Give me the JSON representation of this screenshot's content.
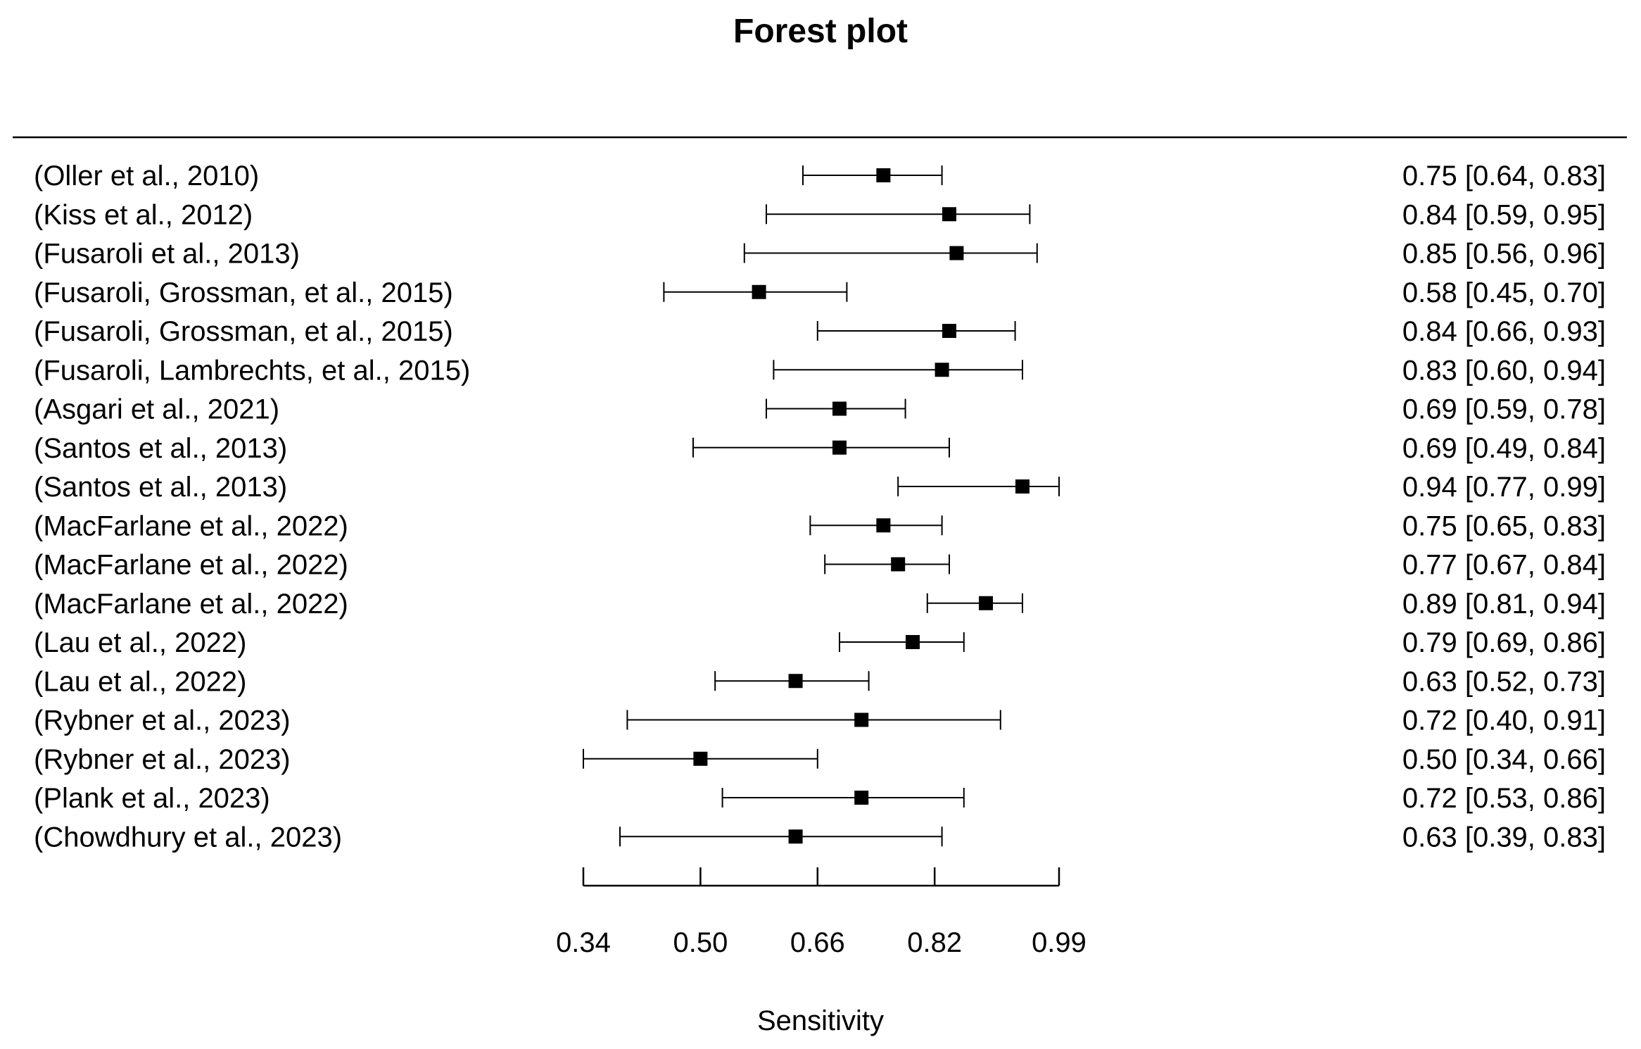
{
  "chart_data": {
    "type": "forest",
    "title": "Forest plot",
    "xlabel": "Sensitivity",
    "xlim": [
      0.34,
      0.99
    ],
    "xticks": [
      0.34,
      0.5,
      0.66,
      0.82,
      0.99
    ],
    "xtick_labels": [
      "0.34",
      "0.50",
      "0.66",
      "0.82",
      "0.99"
    ],
    "studies": [
      {
        "label": "(Oller et al., 2010)",
        "estimate": 0.75,
        "lower": 0.64,
        "upper": 0.83,
        "ci_text": "0.75 [0.64, 0.83]"
      },
      {
        "label": "(Kiss et al., 2012)",
        "estimate": 0.84,
        "lower": 0.59,
        "upper": 0.95,
        "ci_text": "0.84 [0.59, 0.95]"
      },
      {
        "label": "(Fusaroli et al., 2013)",
        "estimate": 0.85,
        "lower": 0.56,
        "upper": 0.96,
        "ci_text": "0.85 [0.56, 0.96]"
      },
      {
        "label": "(Fusaroli, Grossman, et al., 2015)",
        "estimate": 0.58,
        "lower": 0.45,
        "upper": 0.7,
        "ci_text": "0.58 [0.45, 0.70]"
      },
      {
        "label": "(Fusaroli, Grossman, et al., 2015)",
        "estimate": 0.84,
        "lower": 0.66,
        "upper": 0.93,
        "ci_text": "0.84 [0.66, 0.93]"
      },
      {
        "label": "(Fusaroli, Lambrechts, et al., 2015)",
        "estimate": 0.83,
        "lower": 0.6,
        "upper": 0.94,
        "ci_text": "0.83 [0.60, 0.94]"
      },
      {
        "label": "(Asgari et al., 2021)",
        "estimate": 0.69,
        "lower": 0.59,
        "upper": 0.78,
        "ci_text": "0.69 [0.59, 0.78]"
      },
      {
        "label": "(Santos et al., 2013)",
        "estimate": 0.69,
        "lower": 0.49,
        "upper": 0.84,
        "ci_text": "0.69 [0.49, 0.84]"
      },
      {
        "label": "(Santos et al., 2013)",
        "estimate": 0.94,
        "lower": 0.77,
        "upper": 0.99,
        "ci_text": "0.94 [0.77, 0.99]"
      },
      {
        "label": "(MacFarlane et al., 2022)",
        "estimate": 0.75,
        "lower": 0.65,
        "upper": 0.83,
        "ci_text": "0.75 [0.65, 0.83]"
      },
      {
        "label": "(MacFarlane et al., 2022)",
        "estimate": 0.77,
        "lower": 0.67,
        "upper": 0.84,
        "ci_text": "0.77 [0.67, 0.84]"
      },
      {
        "label": "(MacFarlane et al., 2022)",
        "estimate": 0.89,
        "lower": 0.81,
        "upper": 0.94,
        "ci_text": "0.89 [0.81, 0.94]"
      },
      {
        "label": "(Lau et al., 2022)",
        "estimate": 0.79,
        "lower": 0.69,
        "upper": 0.86,
        "ci_text": "0.79 [0.69, 0.86]"
      },
      {
        "label": "(Lau et al., 2022)",
        "estimate": 0.63,
        "lower": 0.52,
        "upper": 0.73,
        "ci_text": "0.63 [0.52, 0.73]"
      },
      {
        "label": "(Rybner et al., 2023)",
        "estimate": 0.72,
        "lower": 0.4,
        "upper": 0.91,
        "ci_text": "0.72 [0.40, 0.91]"
      },
      {
        "label": "(Rybner et al., 2023)",
        "estimate": 0.5,
        "lower": 0.34,
        "upper": 0.66,
        "ci_text": "0.50 [0.34, 0.66]"
      },
      {
        "label": "(Plank et al., 2023)",
        "estimate": 0.72,
        "lower": 0.53,
        "upper": 0.86,
        "ci_text": "0.72 [0.53, 0.86]"
      },
      {
        "label": "(Chowdhury et al., 2023)",
        "estimate": 0.63,
        "lower": 0.39,
        "upper": 0.83,
        "ci_text": "0.63 [0.39, 0.83]"
      }
    ]
  }
}
